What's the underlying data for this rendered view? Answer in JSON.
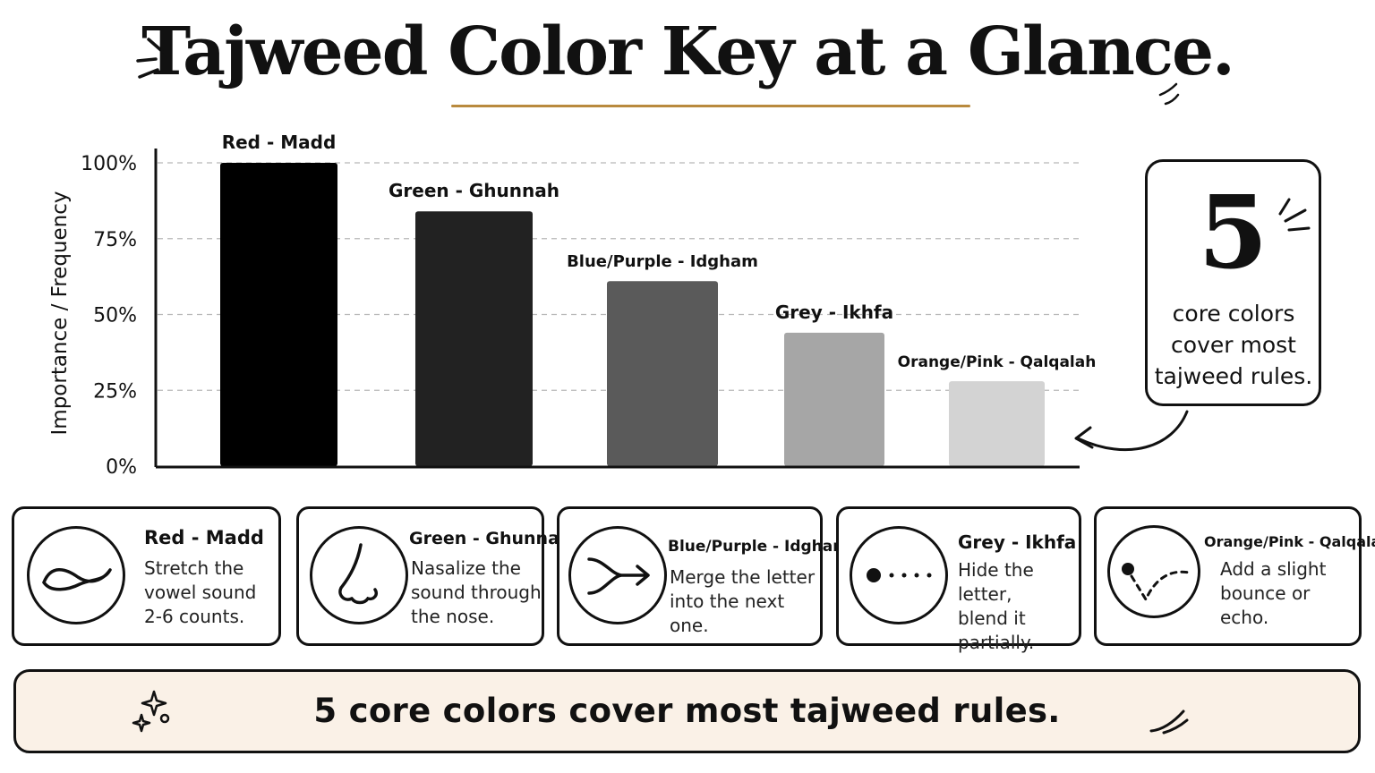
{
  "title": "Tajweed Color Key at a Glance.",
  "accent_color": "#b98a3e",
  "chart_data": {
    "type": "bar",
    "categories": [
      "Red - Madd",
      "Green - Ghunnah",
      "Blue/Purple - Idgham",
      "Grey - Ikhfa",
      "Orange/Pink - Qalqalah"
    ],
    "values": [
      100,
      84,
      61,
      44,
      28
    ],
    "colors": [
      "#000000",
      "#222222",
      "#5a5a5a",
      "#a6a6a6",
      "#d3d3d3"
    ],
    "ylabel": "Importance / Frequency",
    "ylim": [
      0,
      100
    ],
    "yticks": [
      0,
      25,
      50,
      75,
      100
    ],
    "ytick_labels": [
      "0%",
      "25%",
      "50%",
      "75%",
      "100%"
    ],
    "grid": true
  },
  "callout": {
    "number": "5",
    "text": "core colors cover most tajweed rules."
  },
  "cards": [
    {
      "title": "Red - Madd",
      "desc": "Stretch the\nvowel sound\n2-6 counts.",
      "icon": "wave-icon"
    },
    {
      "title": "Green - Ghunnah",
      "desc": "Nasalize the\nsound through\nthe nose.",
      "icon": "nose-icon"
    },
    {
      "title": "Blue/Purple - Idgham",
      "desc": "Merge the letter\ninto the next one.",
      "icon": "merge-arrow-icon"
    },
    {
      "title": "Grey - Ikhfa",
      "desc": "Hide the letter,\nblend it\npartially.",
      "icon": "dotted-line-icon"
    },
    {
      "title": "Orange/Pink - Qalqalah",
      "desc": "Add a slight\nbounce or\necho.",
      "icon": "bounce-icon"
    }
  ],
  "banner": {
    "text": "5 core colors cover most tajweed rules.",
    "background": "#faf1e7"
  }
}
